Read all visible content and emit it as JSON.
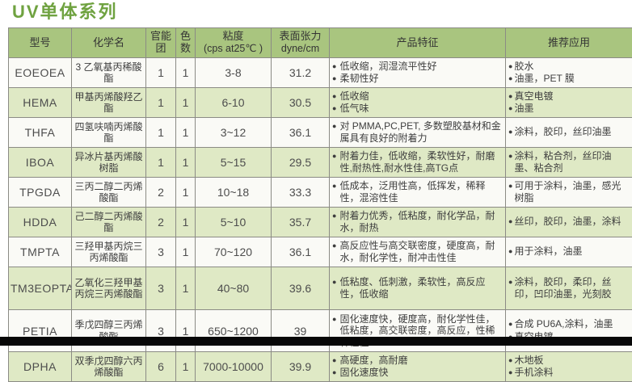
{
  "page": {
    "title": "UV单体系列"
  },
  "icons": {
    "bullet": "●"
  },
  "colors": {
    "title_green": "#6fa240",
    "header_bg": "#a9c57f",
    "row_bg": "#fafaf6",
    "row_alt_bg": "#dfe9c5",
    "border": "#8b8b85"
  },
  "table": {
    "columns": [
      {
        "label": "型号"
      },
      {
        "label": "化学名"
      },
      {
        "label": "官能团"
      },
      {
        "label": "色数"
      },
      {
        "label": "粘度",
        "sublabel": "(cps at25℃ )"
      },
      {
        "label": "表面张力",
        "sublabel": "dyne/cm"
      },
      {
        "label": "产品特征"
      },
      {
        "label": "推荐应用"
      }
    ],
    "rows": [
      {
        "model": "EOEOEA",
        "chemical": "3 乙氧基丙稀酸酯",
        "functional": "1",
        "color_num": "1",
        "viscosity": "3-8",
        "surface_tension": "31.2",
        "features": [
          "低收缩，润湿流平性好",
          "柔韧性好"
        ],
        "apps": [
          "胶水",
          "油墨，PET 膜"
        ]
      },
      {
        "model": "HEMA",
        "chemical": "甲基丙烯酸羟乙酯",
        "functional": "1",
        "color_num": "1",
        "viscosity": "6-10",
        "surface_tension": "30.5",
        "features": [
          "低收缩",
          "低气味"
        ],
        "apps": [
          "真空电镀",
          "油墨"
        ]
      },
      {
        "model": "THFA",
        "chemical": "四氢呋喃丙烯酸酯",
        "functional": "1",
        "color_num": "1",
        "viscosity": "3~12",
        "surface_tension": "36.1",
        "features": [
          "对 PMMA,PC,PET, 多数塑胶基材和金属具有良好的附着力"
        ],
        "apps": [
          "涂料，胶印，丝印油墨"
        ]
      },
      {
        "model": "IBOA",
        "chemical": "异冰片基丙烯酸树脂",
        "functional": "1",
        "color_num": "1",
        "viscosity": "5~15",
        "surface_tension": "29.5",
        "features": [
          "附着力佳，低收缩，柔软性好，耐磨性,耐热性,耐水性佳,高TG点"
        ],
        "apps": [
          "涂料，粘合剂，丝印油墨、粘合剂"
        ]
      },
      {
        "model": "TPGDA",
        "chemical": "三丙二醇二丙烯酸酯",
        "functional": "2",
        "color_num": "1",
        "viscosity": "10~18",
        "surface_tension": "33.3",
        "features": [
          "低成本，泛用性高，低挥发，稀释性，混溶性佳"
        ],
        "apps": [
          "可用于涂料，油墨，感光树脂"
        ]
      },
      {
        "model": "HDDA",
        "chemical": "己二醇二丙烯酸酯",
        "functional": "2",
        "color_num": "1",
        "viscosity": "5~10",
        "surface_tension": "35.7",
        "features": [
          "附着力优秀，低粘度，耐化学品，耐水，耐热"
        ],
        "apps": [
          "丝印，胶印，油墨，涂料"
        ]
      },
      {
        "model": "TMPTA",
        "chemical": "三羟甲基丙烷三丙烯酸酯",
        "functional": "3",
        "color_num": "1",
        "viscosity": "70~120",
        "surface_tension": "36.1",
        "features": [
          "高反应性与高交联密度，硬度高，耐水，耐化学性，耐冲击性佳"
        ],
        "apps": [
          "用于涂料，油墨"
        ]
      },
      {
        "model": "TM3EOPTA",
        "chemical": "乙氧化三羟甲基丙烷三丙烯酸酯",
        "functional": "3",
        "color_num": "1",
        "viscosity": "40~80",
        "surface_tension": "39.6",
        "features": [
          "低粘度、低刺激，柔软性，高反应性，低收缩"
        ],
        "apps": [
          "涂料，胶印，柔印，丝印，凹印油墨，光刻胶"
        ]
      },
      {
        "model": "PETIA",
        "chemical": "季戊四醇三丙烯酸酯",
        "functional": "3",
        "color_num": "1",
        "viscosity": "650~1200",
        "surface_tension": "39",
        "features": [
          "固化速度快，硬度高，耐化学性佳，低粘度，高交联密度，高反应，性稀释性佳"
        ],
        "apps": [
          "合成 PU6A,涂料，油墨",
          "真空电镀"
        ]
      },
      {
        "model": "DPHA",
        "chemical": "双季戊四醇六丙烯酸酯",
        "functional": "6",
        "color_num": "1",
        "viscosity": "7000-10000",
        "surface_tension": "39.9",
        "features": [
          "高硬度，高耐磨",
          "固化速度快"
        ],
        "apps": [
          "木地板",
          "手机涂料"
        ]
      }
    ]
  }
}
